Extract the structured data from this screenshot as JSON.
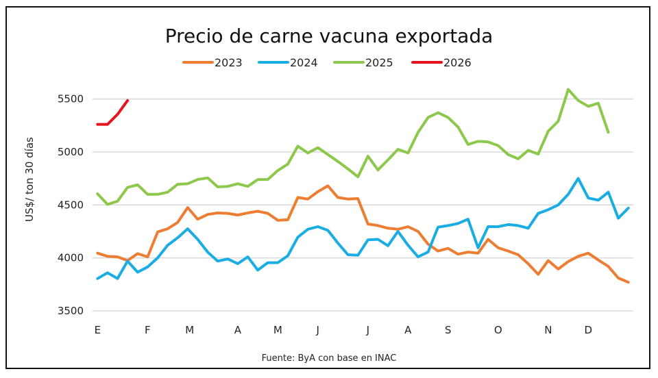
{
  "chart_data": {
    "type": "line",
    "title": "Precio de carne vacuna exportada",
    "ylabel": "US$/ ton 30 días",
    "xlabel": "",
    "source": "Fuente: ByA con base en INAC",
    "ylim": [
      3500,
      5500
    ],
    "yticks": [
      3500,
      4000,
      4500,
      5000,
      5500
    ],
    "grid": true,
    "legend_position": "top-center",
    "n_points": 54,
    "x_tick_labels": [
      {
        "label": "E",
        "index": 0
      },
      {
        "label": "F",
        "index": 5
      },
      {
        "label": "M",
        "index": 9.2
      },
      {
        "label": "A",
        "index": 14
      },
      {
        "label": "M",
        "index": 18
      },
      {
        "label": "J",
        "index": 22
      },
      {
        "label": "J",
        "index": 27
      },
      {
        "label": "A",
        "index": 31
      },
      {
        "label": "S",
        "index": 35
      },
      {
        "label": "O",
        "index": 40
      },
      {
        "label": "N",
        "index": 45
      },
      {
        "label": "D",
        "index": 49
      }
    ],
    "series": [
      {
        "name": "2023",
        "color": "#ED7D31",
        "values": [
          4045,
          4015,
          4010,
          3975,
          4040,
          4010,
          4245,
          4275,
          4335,
          4475,
          4365,
          4410,
          4425,
          4420,
          4405,
          4425,
          4440,
          4420,
          4355,
          4360,
          4570,
          4555,
          4625,
          4680,
          4570,
          4555,
          4560,
          4320,
          4305,
          4280,
          4270,
          4295,
          4250,
          4130,
          4065,
          4090,
          4035,
          4055,
          4045,
          4175,
          4095,
          4065,
          4030,
          3945,
          3845,
          3975,
          3895,
          3965,
          4015,
          4045,
          3980,
          3920,
          3810,
          3770
        ]
      },
      {
        "name": "2024",
        "color": "#1AADE4",
        "values": [
          3805,
          3860,
          3805,
          3970,
          3865,
          3915,
          4000,
          4120,
          4190,
          4275,
          4175,
          4055,
          3970,
          3990,
          3945,
          4010,
          3885,
          3955,
          3955,
          4020,
          4195,
          4270,
          4295,
          4260,
          4140,
          4030,
          4025,
          4170,
          4175,
          4115,
          4250,
          4120,
          4010,
          4055,
          4290,
          4305,
          4325,
          4365,
          4095,
          4295,
          4295,
          4315,
          4305,
          4280,
          4420,
          4455,
          4500,
          4600,
          4750,
          4565,
          4545,
          4620,
          4375,
          4470
        ]
      },
      {
        "name": "2025",
        "color": "#8CC84B",
        "values": [
          4605,
          4505,
          4535,
          4665,
          4690,
          4600,
          4600,
          4620,
          4695,
          4700,
          4740,
          4755,
          4670,
          4675,
          4700,
          4675,
          4740,
          4740,
          4825,
          4885,
          5055,
          4990,
          5040,
          4975,
          4910,
          4840,
          4765,
          4960,
          4830,
          4925,
          5025,
          4990,
          5185,
          5325,
          5370,
          5325,
          5235,
          5070,
          5100,
          5095,
          5060,
          4975,
          4935,
          5015,
          4980,
          5195,
          5290,
          5590,
          5485,
          5430,
          5460,
          5185
        ]
      },
      {
        "name": "2026",
        "color": "#E8141C",
        "values": [
          5260,
          5260,
          5355,
          5485
        ]
      }
    ]
  }
}
